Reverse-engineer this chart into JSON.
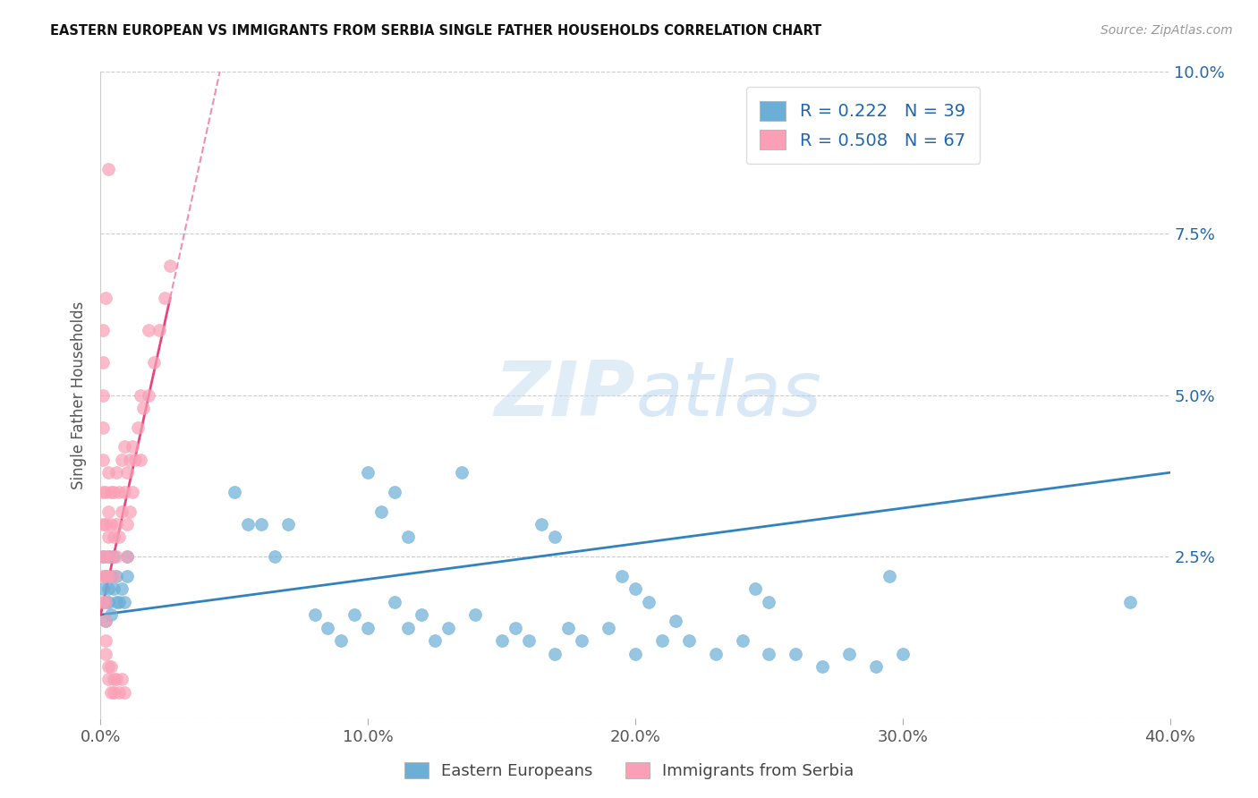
{
  "title": "EASTERN EUROPEAN VS IMMIGRANTS FROM SERBIA SINGLE FATHER HOUSEHOLDS CORRELATION CHART",
  "source": "Source: ZipAtlas.com",
  "ylabel": "Single Father Households",
  "xlabel": "",
  "legend_entry1": "Eastern Europeans",
  "legend_entry2": "Immigrants from Serbia",
  "R1": 0.222,
  "N1": 39,
  "R2": 0.508,
  "N2": 67,
  "xlim": [
    0.0,
    0.4
  ],
  "ylim": [
    0.0,
    0.1
  ],
  "xticks": [
    0.0,
    0.1,
    0.2,
    0.3,
    0.4
  ],
  "xtick_labels": [
    "0.0%",
    "10.0%",
    "20.0%",
    "30.0%",
    "40.0%"
  ],
  "yticks": [
    0.0,
    0.025,
    0.05,
    0.075,
    0.1
  ],
  "ytick_labels": [
    "",
    "2.5%",
    "5.0%",
    "7.5%",
    "10.0%"
  ],
  "color_blue": "#6baed6",
  "color_pink": "#fa9fb5",
  "color_blue_line": "#3182bd",
  "color_pink_line": "#e8457a",
  "watermark_zip": "ZIP",
  "watermark_atlas": "atlas",
  "background_color": "#ffffff",
  "eastern_x": [
    0.001,
    0.001,
    0.002,
    0.002,
    0.002,
    0.003,
    0.003,
    0.003,
    0.004,
    0.004,
    0.005,
    0.005,
    0.006,
    0.006,
    0.007,
    0.008,
    0.009,
    0.01,
    0.01,
    0.05,
    0.055,
    0.06,
    0.065,
    0.07,
    0.1,
    0.105,
    0.11,
    0.115,
    0.135,
    0.165,
    0.17,
    0.195,
    0.2,
    0.205,
    0.215,
    0.245,
    0.25,
    0.295,
    0.385
  ],
  "eastern_y": [
    0.02,
    0.025,
    0.018,
    0.022,
    0.015,
    0.02,
    0.025,
    0.018,
    0.022,
    0.016,
    0.02,
    0.025,
    0.018,
    0.022,
    0.018,
    0.02,
    0.018,
    0.022,
    0.025,
    0.035,
    0.03,
    0.03,
    0.025,
    0.03,
    0.038,
    0.032,
    0.035,
    0.028,
    0.038,
    0.03,
    0.028,
    0.022,
    0.02,
    0.018,
    0.015,
    0.02,
    0.018,
    0.022,
    0.018
  ],
  "eastern_x2": [
    0.08,
    0.085,
    0.09,
    0.095,
    0.1,
    0.11,
    0.115,
    0.12,
    0.125,
    0.13,
    0.14,
    0.15,
    0.155,
    0.16,
    0.17,
    0.175,
    0.18,
    0.19,
    0.2,
    0.21,
    0.22,
    0.23,
    0.24,
    0.25,
    0.26,
    0.27,
    0.28,
    0.29,
    0.3
  ],
  "eastern_y2": [
    0.016,
    0.014,
    0.012,
    0.016,
    0.014,
    0.018,
    0.014,
    0.016,
    0.012,
    0.014,
    0.016,
    0.012,
    0.014,
    0.012,
    0.01,
    0.014,
    0.012,
    0.014,
    0.01,
    0.012,
    0.012,
    0.01,
    0.012,
    0.01,
    0.01,
    0.008,
    0.01,
    0.008,
    0.01
  ],
  "serbia_x": [
    0.001,
    0.001,
    0.001,
    0.001,
    0.001,
    0.002,
    0.002,
    0.002,
    0.002,
    0.002,
    0.003,
    0.003,
    0.003,
    0.003,
    0.004,
    0.004,
    0.004,
    0.005,
    0.005,
    0.005,
    0.006,
    0.006,
    0.006,
    0.007,
    0.007,
    0.008,
    0.008,
    0.009,
    0.009,
    0.01,
    0.01,
    0.01,
    0.011,
    0.011,
    0.012,
    0.012,
    0.013,
    0.014,
    0.015,
    0.015,
    0.016,
    0.018,
    0.018,
    0.02,
    0.022,
    0.024,
    0.026,
    0.003,
    0.002,
    0.001,
    0.001,
    0.001,
    0.001,
    0.001,
    0.002,
    0.002,
    0.002,
    0.003,
    0.003,
    0.004,
    0.004,
    0.005,
    0.005,
    0.006,
    0.007,
    0.008,
    0.009
  ],
  "serbia_y": [
    0.022,
    0.025,
    0.03,
    0.035,
    0.04,
    0.022,
    0.025,
    0.03,
    0.035,
    0.018,
    0.022,
    0.028,
    0.032,
    0.038,
    0.025,
    0.03,
    0.035,
    0.022,
    0.028,
    0.035,
    0.025,
    0.03,
    0.038,
    0.028,
    0.035,
    0.032,
    0.04,
    0.035,
    0.042,
    0.025,
    0.03,
    0.038,
    0.032,
    0.04,
    0.035,
    0.042,
    0.04,
    0.045,
    0.04,
    0.05,
    0.048,
    0.05,
    0.06,
    0.055,
    0.06,
    0.065,
    0.07,
    0.085,
    0.065,
    0.06,
    0.055,
    0.05,
    0.045,
    0.018,
    0.015,
    0.012,
    0.01,
    0.008,
    0.006,
    0.004,
    0.008,
    0.006,
    0.004,
    0.006,
    0.004,
    0.006,
    0.004
  ]
}
